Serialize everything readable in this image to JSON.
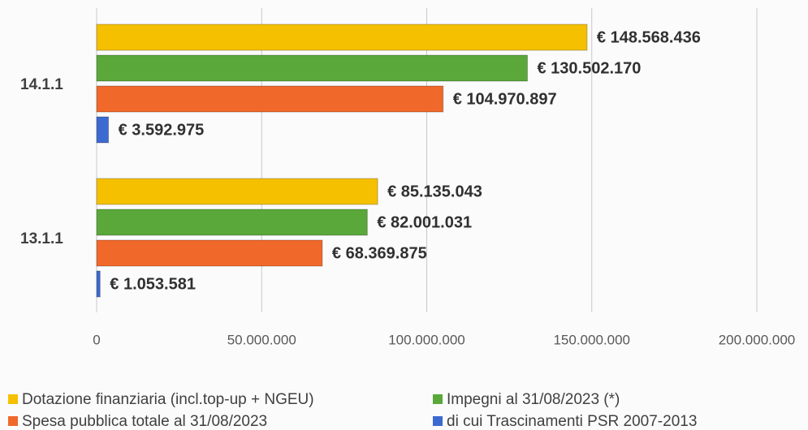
{
  "chart_data": {
    "type": "hbar",
    "categories": [
      "14.1.1",
      "13.1.1"
    ],
    "series": [
      {
        "name": "Dotazione finanziaria (incl.top-up + NGEU)",
        "color": "#f5c000",
        "values": [
          148568436,
          85135043
        ],
        "value_labels": [
          "€ 148.568.436",
          "€ 85.135.043"
        ]
      },
      {
        "name": "Impegni al 31/08/2023 (*)",
        "color": "#5aa83a",
        "values": [
          130502170,
          82001031
        ],
        "value_labels": [
          "€ 130.502.170",
          "€ 82.001.031"
        ]
      },
      {
        "name": "Spesa pubblica totale al 31/08/2023",
        "color": "#f0682a",
        "values": [
          104970897,
          68369875
        ],
        "value_labels": [
          "€ 104.970.897",
          "€ 68.369.875"
        ]
      },
      {
        "name": "di cui Trascinamenti PSR 2007-2013",
        "color": "#3d6ad0",
        "values": [
          3592975,
          1053581
        ],
        "value_labels": [
          "€ 3.592.975",
          "€ 1.053.581"
        ]
      }
    ],
    "xlim": [
      0,
      200000000
    ],
    "xticks": [
      0,
      {
        "value": 50000000,
        "label": "50.000.000"
      },
      {
        "value": 100000000,
        "label": "100.000.000"
      },
      {
        "value": 150000000,
        "label": "150.000.000"
      },
      {
        "value": 200000000,
        "label": "200.000.000"
      }
    ],
    "grid": true
  }
}
